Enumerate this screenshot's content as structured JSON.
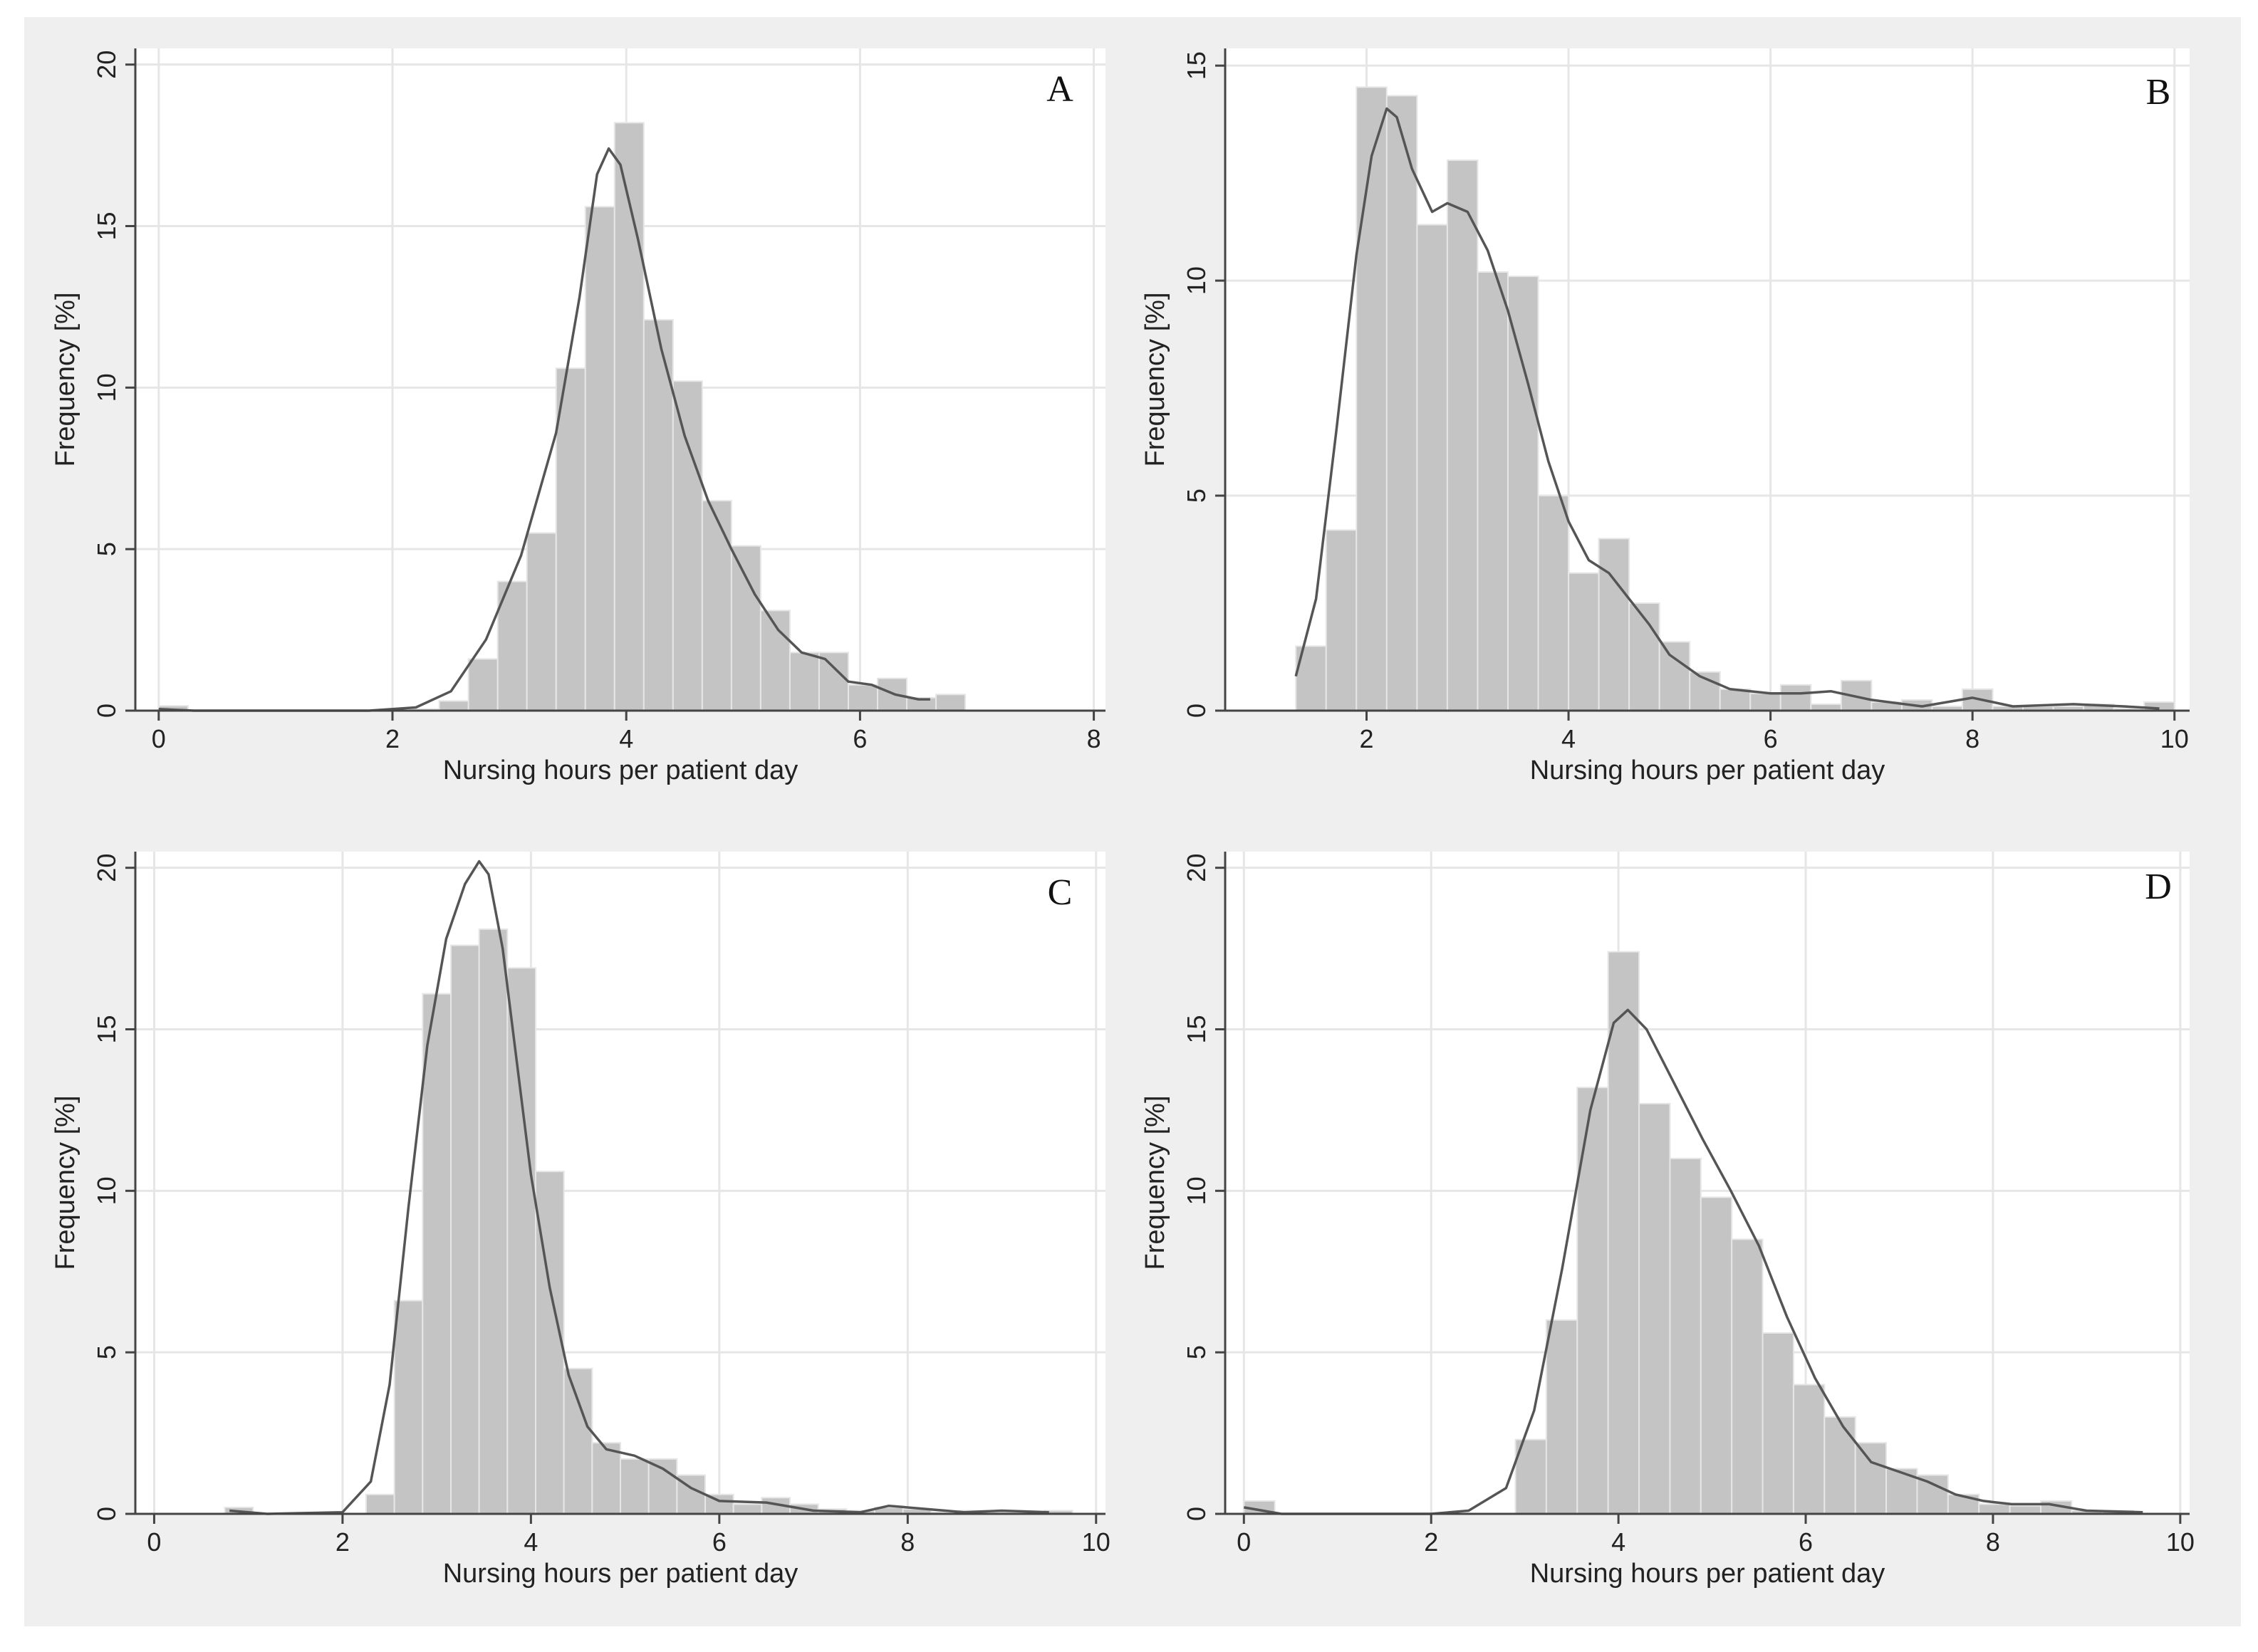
{
  "chart_data": [
    {
      "type": "bar",
      "panel_label": "A",
      "xlabel": "Nursing hours per patient day",
      "ylabel": "Frequency [%]",
      "xlim": [
        -0.2,
        8.1
      ],
      "ylim": [
        0,
        20.5
      ],
      "xticks": [
        0,
        2,
        4,
        6,
        8
      ],
      "yticks": [
        0,
        5,
        10,
        15,
        20
      ],
      "bin_width": 0.25,
      "bins": [
        {
          "x": 0.0,
          "v": 0.15
        },
        {
          "x": 2.15,
          "v": 0.05
        },
        {
          "x": 2.4,
          "v": 0.3
        },
        {
          "x": 2.65,
          "v": 1.6
        },
        {
          "x": 2.9,
          "v": 4.0
        },
        {
          "x": 3.15,
          "v": 5.5
        },
        {
          "x": 3.4,
          "v": 10.6
        },
        {
          "x": 3.65,
          "v": 15.6
        },
        {
          "x": 3.9,
          "v": 18.2
        },
        {
          "x": 4.15,
          "v": 12.1
        },
        {
          "x": 4.4,
          "v": 10.2
        },
        {
          "x": 4.65,
          "v": 6.5
        },
        {
          "x": 4.9,
          "v": 5.1
        },
        {
          "x": 5.15,
          "v": 3.1
        },
        {
          "x": 5.4,
          "v": 1.8
        },
        {
          "x": 5.65,
          "v": 1.8
        },
        {
          "x": 5.9,
          "v": 0.8
        },
        {
          "x": 6.15,
          "v": 1.0
        },
        {
          "x": 6.4,
          "v": 0.4
        },
        {
          "x": 6.65,
          "v": 0.5
        }
      ],
      "kde": [
        [
          0,
          0.05
        ],
        [
          0.3,
          0
        ],
        [
          1.8,
          0
        ],
        [
          2.2,
          0.1
        ],
        [
          2.5,
          0.6
        ],
        [
          2.8,
          2.2
        ],
        [
          3.1,
          4.8
        ],
        [
          3.4,
          8.6
        ],
        [
          3.6,
          12.8
        ],
        [
          3.75,
          16.6
        ],
        [
          3.85,
          17.4
        ],
        [
          3.95,
          16.9
        ],
        [
          4.1,
          14.6
        ],
        [
          4.3,
          11.2
        ],
        [
          4.5,
          8.5
        ],
        [
          4.7,
          6.5
        ],
        [
          4.9,
          5.0
        ],
        [
          5.1,
          3.6
        ],
        [
          5.3,
          2.5
        ],
        [
          5.5,
          1.8
        ],
        [
          5.7,
          1.6
        ],
        [
          5.9,
          0.9
        ],
        [
          6.1,
          0.8
        ],
        [
          6.3,
          0.5
        ],
        [
          6.5,
          0.35
        ],
        [
          6.6,
          0.35
        ]
      ]
    },
    {
      "type": "bar",
      "panel_label": "B",
      "xlabel": "Nursing hours per patient day",
      "ylabel": "Frequency [%]",
      "xlim": [
        0.6,
        10.15
      ],
      "ylim": [
        0,
        15.4
      ],
      "xticks": [
        2,
        4,
        6,
        8,
        10
      ],
      "yticks": [
        0,
        5,
        10,
        15
      ],
      "bin_width": 0.3,
      "bins": [
        {
          "x": 1.3,
          "v": 1.5
        },
        {
          "x": 1.6,
          "v": 4.2
        },
        {
          "x": 1.9,
          "v": 14.5
        },
        {
          "x": 2.2,
          "v": 14.3
        },
        {
          "x": 2.5,
          "v": 11.3
        },
        {
          "x": 2.8,
          "v": 12.8
        },
        {
          "x": 3.1,
          "v": 10.2
        },
        {
          "x": 3.4,
          "v": 10.1
        },
        {
          "x": 3.7,
          "v": 5.0
        },
        {
          "x": 4.0,
          "v": 3.2
        },
        {
          "x": 4.3,
          "v": 4.0
        },
        {
          "x": 4.6,
          "v": 2.5
        },
        {
          "x": 4.9,
          "v": 1.6
        },
        {
          "x": 5.2,
          "v": 0.9
        },
        {
          "x": 5.5,
          "v": 0.5
        },
        {
          "x": 5.8,
          "v": 0.4
        },
        {
          "x": 6.1,
          "v": 0.6
        },
        {
          "x": 6.4,
          "v": 0.15
        },
        {
          "x": 6.7,
          "v": 0.7
        },
        {
          "x": 7.0,
          "v": 0.2
        },
        {
          "x": 7.3,
          "v": 0.25
        },
        {
          "x": 7.6,
          "v": 0.1
        },
        {
          "x": 7.9,
          "v": 0.5
        },
        {
          "x": 8.2,
          "v": 0.1
        },
        {
          "x": 8.5,
          "v": 0.1
        },
        {
          "x": 8.8,
          "v": 0.1
        },
        {
          "x": 9.1,
          "v": 0.15
        },
        {
          "x": 9.4,
          "v": 0.05
        },
        {
          "x": 9.7,
          "v": 0.2
        }
      ],
      "kde": [
        [
          1.3,
          0.8
        ],
        [
          1.5,
          2.6
        ],
        [
          1.7,
          6.5
        ],
        [
          1.9,
          10.6
        ],
        [
          2.05,
          12.9
        ],
        [
          2.2,
          14.0
        ],
        [
          2.3,
          13.8
        ],
        [
          2.45,
          12.6
        ],
        [
          2.65,
          11.6
        ],
        [
          2.8,
          11.8
        ],
        [
          3.0,
          11.6
        ],
        [
          3.2,
          10.7
        ],
        [
          3.4,
          9.3
        ],
        [
          3.6,
          7.6
        ],
        [
          3.8,
          5.8
        ],
        [
          4.0,
          4.4
        ],
        [
          4.2,
          3.5
        ],
        [
          4.4,
          3.2
        ],
        [
          4.6,
          2.6
        ],
        [
          4.8,
          2.0
        ],
        [
          5.0,
          1.3
        ],
        [
          5.3,
          0.8
        ],
        [
          5.6,
          0.5
        ],
        [
          6.0,
          0.4
        ],
        [
          6.3,
          0.4
        ],
        [
          6.6,
          0.45
        ],
        [
          7.0,
          0.25
        ],
        [
          7.5,
          0.1
        ],
        [
          8.0,
          0.3
        ],
        [
          8.4,
          0.1
        ],
        [
          9.0,
          0.15
        ],
        [
          9.5,
          0.1
        ],
        [
          9.85,
          0.05
        ]
      ]
    },
    {
      "type": "bar",
      "panel_label": "C",
      "xlabel": "Nursing hours per patient day",
      "ylabel": "Frequency [%]",
      "xlim": [
        -0.2,
        10.1
      ],
      "ylim": [
        0,
        20.5
      ],
      "xticks": [
        0,
        2,
        4,
        6,
        8,
        10
      ],
      "yticks": [
        0,
        5,
        10,
        15,
        20
      ],
      "bin_width": 0.3,
      "bins": [
        {
          "x": 0.75,
          "v": 0.2
        },
        {
          "x": 2.25,
          "v": 0.6
        },
        {
          "x": 2.55,
          "v": 6.6
        },
        {
          "x": 2.85,
          "v": 16.1
        },
        {
          "x": 3.15,
          "v": 17.6
        },
        {
          "x": 3.45,
          "v": 18.1
        },
        {
          "x": 3.75,
          "v": 16.9
        },
        {
          "x": 4.05,
          "v": 10.6
        },
        {
          "x": 4.35,
          "v": 4.5
        },
        {
          "x": 4.65,
          "v": 2.2
        },
        {
          "x": 4.95,
          "v": 1.7
        },
        {
          "x": 5.25,
          "v": 1.7
        },
        {
          "x": 5.55,
          "v": 1.2
        },
        {
          "x": 5.85,
          "v": 0.6
        },
        {
          "x": 6.15,
          "v": 0.3
        },
        {
          "x": 6.45,
          "v": 0.5
        },
        {
          "x": 6.75,
          "v": 0.3
        },
        {
          "x": 7.05,
          "v": 0.15
        },
        {
          "x": 7.35,
          "v": 0.1
        },
        {
          "x": 7.65,
          "v": 0.2
        },
        {
          "x": 7.95,
          "v": 0.15
        },
        {
          "x": 8.25,
          "v": 0.05
        },
        {
          "x": 8.55,
          "v": 0.1
        },
        {
          "x": 8.85,
          "v": 0.05
        },
        {
          "x": 9.15,
          "v": 0.05
        },
        {
          "x": 9.45,
          "v": 0.1
        }
      ],
      "kde": [
        [
          0.8,
          0.1
        ],
        [
          1.2,
          0
        ],
        [
          2.0,
          0.05
        ],
        [
          2.3,
          1.0
        ],
        [
          2.5,
          4.0
        ],
        [
          2.7,
          9.5
        ],
        [
          2.9,
          14.5
        ],
        [
          3.1,
          17.8
        ],
        [
          3.3,
          19.5
        ],
        [
          3.45,
          20.2
        ],
        [
          3.55,
          19.8
        ],
        [
          3.7,
          17.5
        ],
        [
          3.85,
          14.0
        ],
        [
          4.0,
          10.5
        ],
        [
          4.2,
          7.0
        ],
        [
          4.4,
          4.3
        ],
        [
          4.6,
          2.7
        ],
        [
          4.8,
          2.0
        ],
        [
          5.1,
          1.8
        ],
        [
          5.4,
          1.4
        ],
        [
          5.7,
          0.8
        ],
        [
          6.0,
          0.4
        ],
        [
          6.5,
          0.35
        ],
        [
          7.0,
          0.1
        ],
        [
          7.5,
          0.05
        ],
        [
          7.8,
          0.25
        ],
        [
          8.2,
          0.15
        ],
        [
          8.6,
          0.05
        ],
        [
          9.0,
          0.1
        ],
        [
          9.5,
          0.05
        ]
      ]
    },
    {
      "type": "bar",
      "panel_label": "D",
      "xlabel": "Nursing hours per patient day",
      "ylabel": "Frequency [%]",
      "xlim": [
        -0.2,
        10.1
      ],
      "ylim": [
        0,
        20.5
      ],
      "xticks": [
        0,
        2,
        4,
        6,
        8,
        10
      ],
      "yticks": [
        0,
        5,
        10,
        15,
        20
      ],
      "bin_width": 0.33,
      "bins": [
        {
          "x": 0.0,
          "v": 0.4
        },
        {
          "x": 2.9,
          "v": 2.3
        },
        {
          "x": 3.23,
          "v": 6.0
        },
        {
          "x": 3.56,
          "v": 13.2
        },
        {
          "x": 3.89,
          "v": 17.4
        },
        {
          "x": 4.22,
          "v": 12.7
        },
        {
          "x": 4.55,
          "v": 11.0
        },
        {
          "x": 4.88,
          "v": 9.8
        },
        {
          "x": 5.21,
          "v": 8.5
        },
        {
          "x": 5.54,
          "v": 5.6
        },
        {
          "x": 5.87,
          "v": 4.0
        },
        {
          "x": 6.2,
          "v": 3.0
        },
        {
          "x": 6.53,
          "v": 2.2
        },
        {
          "x": 6.86,
          "v": 1.4
        },
        {
          "x": 7.19,
          "v": 1.2
        },
        {
          "x": 7.52,
          "v": 0.6
        },
        {
          "x": 7.85,
          "v": 0.3
        },
        {
          "x": 8.18,
          "v": 0.25
        },
        {
          "x": 8.51,
          "v": 0.4
        },
        {
          "x": 8.84,
          "v": 0.1
        },
        {
          "x": 9.17,
          "v": 0.1
        }
      ],
      "kde": [
        [
          0,
          0.2
        ],
        [
          0.4,
          0
        ],
        [
          2.0,
          0
        ],
        [
          2.4,
          0.1
        ],
        [
          2.8,
          0.8
        ],
        [
          3.1,
          3.2
        ],
        [
          3.4,
          7.6
        ],
        [
          3.7,
          12.5
        ],
        [
          3.95,
          15.2
        ],
        [
          4.1,
          15.6
        ],
        [
          4.3,
          15.0
        ],
        [
          4.6,
          13.3
        ],
        [
          4.9,
          11.6
        ],
        [
          5.2,
          10.0
        ],
        [
          5.5,
          8.3
        ],
        [
          5.8,
          6.1
        ],
        [
          6.1,
          4.2
        ],
        [
          6.4,
          2.7
        ],
        [
          6.7,
          1.6
        ],
        [
          7.0,
          1.3
        ],
        [
          7.3,
          1.0
        ],
        [
          7.6,
          0.6
        ],
        [
          7.9,
          0.4
        ],
        [
          8.2,
          0.3
        ],
        [
          8.6,
          0.3
        ],
        [
          9.0,
          0.1
        ],
        [
          9.6,
          0.05
        ]
      ]
    }
  ]
}
